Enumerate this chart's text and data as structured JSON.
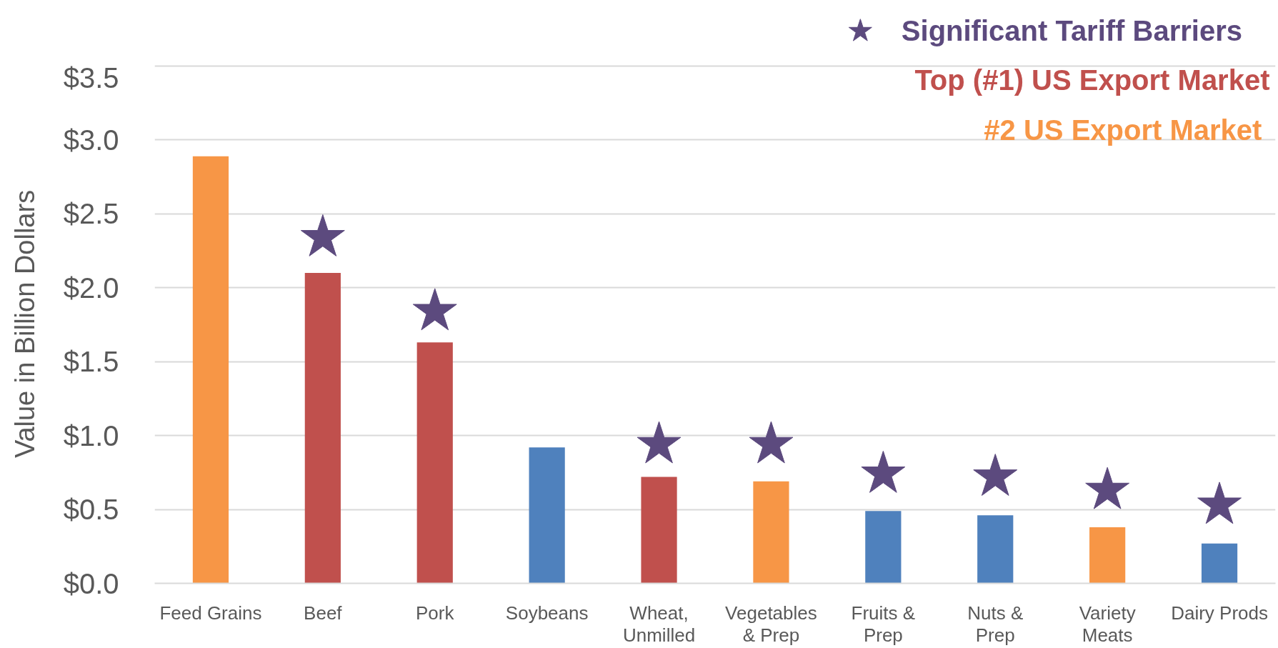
{
  "chart_data": {
    "type": "bar",
    "categories": [
      "Feed Grains",
      "Beef",
      "Pork",
      "Soybeans",
      "Wheat,\nUnmilled",
      "Vegetables\n& Prep",
      "Fruits &\nPrep",
      "Nuts &\nPrep",
      "Variety\nMeats",
      "Dairy Prods"
    ],
    "ylabel": "Value in Billion Dollars",
    "ylim": [
      0,
      3.5
    ],
    "yticks": [
      {
        "value": 0,
        "label": "$0.0"
      },
      {
        "value": 0.5,
        "label": "$0.5"
      },
      {
        "value": 1,
        "label": "$1.0"
      },
      {
        "value": 1.5,
        "label": "$1.5"
      },
      {
        "value": 2,
        "label": "$2.0"
      },
      {
        "value": 2.5,
        "label": "$2.5"
      },
      {
        "value": 3,
        "label": "$3.0"
      },
      {
        "value": 3.5,
        "label": "$3.5"
      }
    ],
    "grid": "y",
    "legend": "top right",
    "series": [
      {
        "type": "scatter",
        "name": "Significant Tariff Barriers",
        "color": "#5c4a7e",
        "marker": "star",
        "x": [
          "Beef",
          "Pork",
          "Wheat,\nUnmilled",
          "Vegetables\n& Prep",
          "Fruits &\nPrep",
          "Nuts &\nPrep",
          "Variety\nMeats",
          "Dairy Prods"
        ],
        "values": [
          2.34,
          1.84,
          0.94,
          0.94,
          0.74,
          0.72,
          0.63,
          0.53
        ]
      },
      {
        "name": "Top (#1) US Export Market",
        "color": "#c0504d",
        "values": [
          null,
          2.1,
          1.63,
          null,
          0.72,
          null,
          null,
          null,
          null,
          null
        ]
      },
      {
        "name": "#2  US Export Market",
        "color": "#f79646",
        "values": [
          2.89,
          null,
          null,
          null,
          null,
          0.69,
          null,
          null,
          0.38,
          null
        ]
      },
      {
        "color": "#4f81bd",
        "values": [
          null,
          null,
          null,
          0.92,
          null,
          null,
          0.49,
          0.46,
          null,
          0.27
        ]
      }
    ]
  }
}
